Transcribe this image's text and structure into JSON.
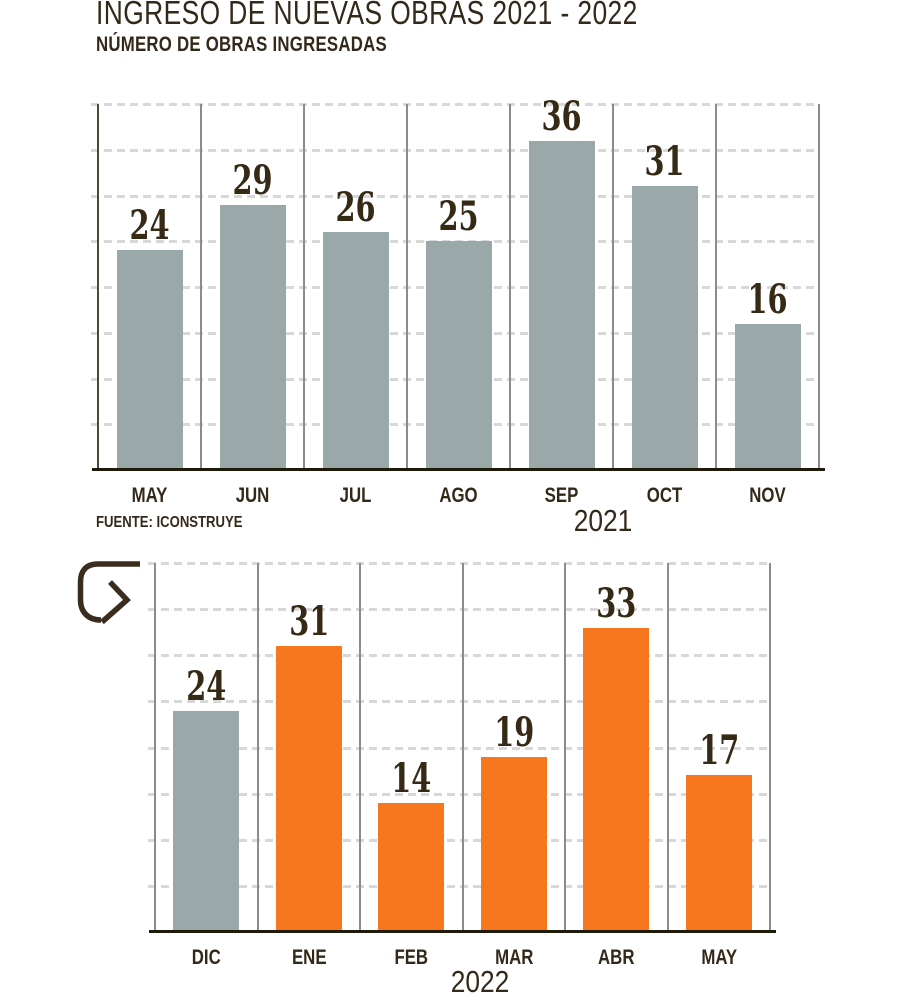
{
  "header": {
    "title": "INGRESO DE NUEVAS OBRAS 2021 - 2022",
    "subtitle": "NÚMERO DE OBRAS INGRESADAS"
  },
  "source": "FUENTE: ICONSTRUYE",
  "colors": {
    "bar_gray": "#9BA8A9",
    "bar_orange": "#F6771E",
    "text_dark": "#33291A",
    "grid_dash": "#D8D8D8",
    "grid_vertical": "#8C8C8C",
    "axis_left_dark": "#50463A",
    "baseline_dark": "#201A0B"
  },
  "chart_data": [
    {
      "type": "bar",
      "year": "2021",
      "categories": [
        "MAY",
        "JUN",
        "JUL",
        "AGO",
        "SEP",
        "OCT",
        "NOV"
      ],
      "values": [
        24,
        29,
        26,
        25,
        36,
        31,
        16
      ],
      "bar_colors": [
        "#9BA8A9",
        "#9BA8A9",
        "#9BA8A9",
        "#9BA8A9",
        "#9BA8A9",
        "#9BA8A9",
        "#9BA8A9"
      ],
      "ylim": [
        0,
        40
      ],
      "gridline_step": 5,
      "grid": "horizontal-dashed",
      "data_labels": true
    },
    {
      "type": "bar",
      "year": "2022",
      "categories": [
        "DIC",
        "ENE",
        "FEB",
        "MAR",
        "ABR",
        "MAY"
      ],
      "values": [
        24,
        31,
        14,
        19,
        33,
        17
      ],
      "bar_colors": [
        "#9BA8A9",
        "#F6771E",
        "#F6771E",
        "#F6771E",
        "#F6771E",
        "#F6771E"
      ],
      "ylim": [
        0,
        40
      ],
      "gridline_step": 5,
      "grid": "horizontal-dashed",
      "data_labels": true
    }
  ],
  "icons": {
    "loop_arrow": "loop-arrow-icon"
  }
}
